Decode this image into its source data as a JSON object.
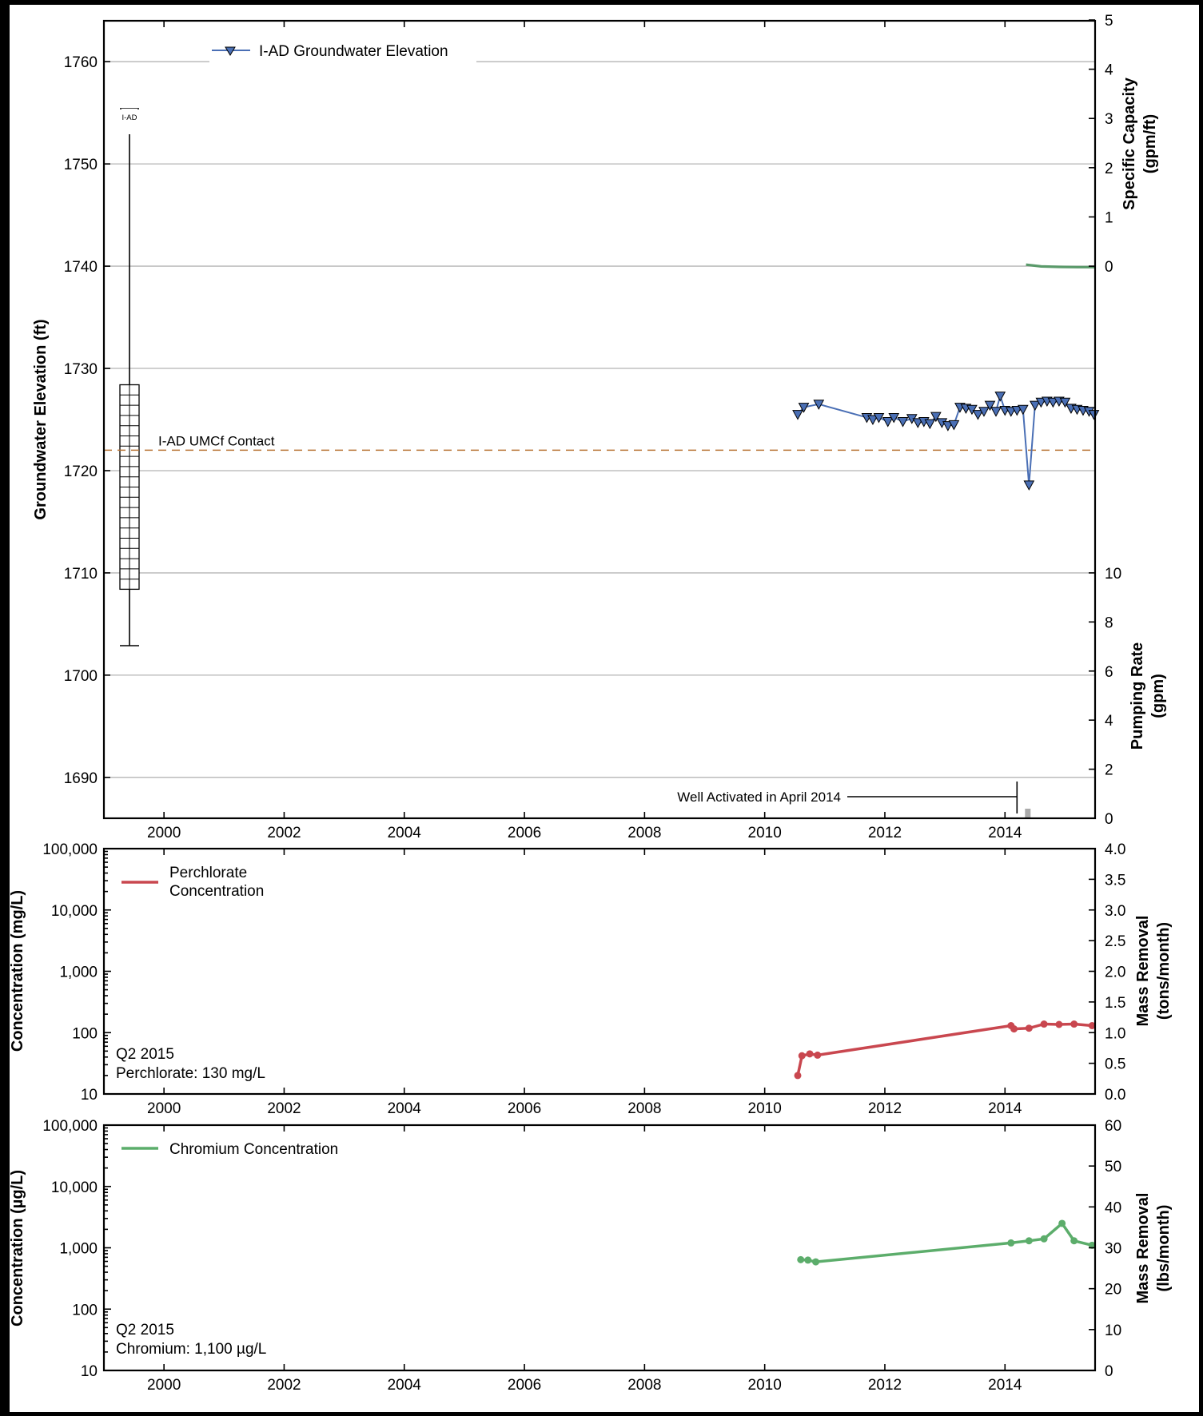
{
  "chart_data": [
    {
      "type": "line",
      "id": "groundwater",
      "ylabel": "Groundwater Elevation (ft)",
      "y2label_top": [
        "Specific Capacity",
        "(gpm/ft)"
      ],
      "y2label_bottom": [
        "Pumping Rate",
        "(gpm)"
      ],
      "xlim": [
        1999.0,
        2015.5
      ],
      "ylim": [
        1686,
        1764
      ],
      "yticks": [
        "1690",
        "1700",
        "1710",
        "1720",
        "1730",
        "1740",
        "1750",
        "1760"
      ],
      "xticks": [
        "2000",
        "2002",
        "2004",
        "2006",
        "2008",
        "2010",
        "2012",
        "2014"
      ],
      "y2_top_ticks": [
        "0",
        "1",
        "2",
        "3",
        "4",
        "5"
      ],
      "y2_bottom_ticks": [
        "0",
        "2",
        "4",
        "6",
        "8",
        "10"
      ],
      "grid": true,
      "legend": {
        "label": "I-AD Groundwater Elevation",
        "position": "top-left"
      },
      "well": {
        "label": "I-AD",
        "top": 1755.4,
        "bottom": 1703.0,
        "screen_top": 1728.4,
        "screen_bottom": 1708.4
      },
      "contact": {
        "label": "I-AD UMCf Contact",
        "value": 1722
      },
      "activation": {
        "label": "Well Activated in April 2014",
        "x": 2014.2
      },
      "series": [
        {
          "name": "I-AD Groundwater Elevation",
          "color": "#4a6fb5",
          "marker": "triangle-down",
          "x": [
            2010.55,
            2010.65,
            2010.9,
            2011.7,
            2011.8,
            2011.9,
            2012.05,
            2012.15,
            2012.3,
            2012.45,
            2012.55,
            2012.65,
            2012.75,
            2012.85,
            2012.95,
            2013.05,
            2013.15,
            2013.25,
            2013.35,
            2013.45,
            2013.55,
            2013.65,
            2013.75,
            2013.85,
            2013.92,
            2014.0,
            2014.1,
            2014.2,
            2014.3,
            2014.4,
            2014.5,
            2014.6,
            2014.7,
            2014.8,
            2014.9,
            2015.0,
            2015.1,
            2015.2,
            2015.3,
            2015.4,
            2015.48
          ],
          "y": [
            1725.5,
            1726.2,
            1726.5,
            1725.2,
            1725.0,
            1725.2,
            1724.8,
            1725.2,
            1724.8,
            1725.1,
            1724.7,
            1724.8,
            1724.6,
            1725.3,
            1724.7,
            1724.4,
            1724.5,
            1726.2,
            1726.1,
            1726.0,
            1725.5,
            1725.8,
            1726.4,
            1725.8,
            1727.3,
            1725.9,
            1725.8,
            1725.9,
            1726.0,
            1718.6,
            1726.4,
            1726.7,
            1726.8,
            1726.7,
            1726.8,
            1726.7,
            1726.1,
            1726.0,
            1725.9,
            1725.8,
            1725.5
          ]
        },
        {
          "name": "Specific Capacity",
          "color": "#5a9a6a",
          "x": [
            2014.35,
            2014.6,
            2014.9,
            2015.2,
            2015.5
          ],
          "y": [
            0.03,
            -0.005,
            -0.015,
            -0.02,
            -0.02
          ]
        }
      ]
    },
    {
      "type": "line",
      "id": "perchlorate",
      "ylabel": "Concentration (mg/L)",
      "y2label": [
        "Mass Removal",
        "(tons/month)"
      ],
      "xlim": [
        1999.0,
        2015.5
      ],
      "ylog": true,
      "ylim": [
        10,
        100000
      ],
      "yticks": [
        "10",
        "100",
        "1,000",
        "10,000",
        "100,000"
      ],
      "y2ticks": [
        "0.0",
        "0.5",
        "1.0",
        "1.5",
        "2.0",
        "2.5",
        "3.0",
        "3.5",
        "4.0"
      ],
      "xticks": [
        "2000",
        "2002",
        "2004",
        "2006",
        "2008",
        "2010",
        "2012",
        "2014"
      ],
      "legend": {
        "label": [
          "Perchlorate",
          "Concentration"
        ],
        "position": "top-left"
      },
      "annotation": [
        "Q2 2015",
        "Perchlorate: 130 mg/L"
      ],
      "series": [
        {
          "name": "Perchlorate Concentration",
          "color": "#c9474f",
          "x": [
            2010.55,
            2010.62,
            2010.75,
            2010.88,
            2014.1,
            2014.15,
            2014.4,
            2014.65,
            2014.9,
            2015.15,
            2015.45
          ],
          "y": [
            20,
            42,
            45,
            43,
            130,
            115,
            118,
            138,
            136,
            138,
            130
          ]
        }
      ]
    },
    {
      "type": "line",
      "id": "chromium",
      "ylabel": "Concentration (µg/L)",
      "y2label": [
        "Mass Removal",
        "(lbs/month)"
      ],
      "xlim": [
        1999.0,
        2015.5
      ],
      "ylog": true,
      "ylim": [
        10,
        100000
      ],
      "yticks": [
        "10",
        "100",
        "1,000",
        "10,000",
        "100,000"
      ],
      "y2ticks": [
        "0",
        "10",
        "20",
        "30",
        "40",
        "50",
        "60"
      ],
      "xticks": [
        "2000",
        "2002",
        "2004",
        "2006",
        "2008",
        "2010",
        "2012",
        "2014"
      ],
      "legend": {
        "label": "Chromium Concentration",
        "position": "top-left"
      },
      "annotation": [
        "Q2 2015",
        "Chromium: 1,100 µg/L"
      ],
      "series": [
        {
          "name": "Chromium Concentration",
          "color": "#5cad6b",
          "x": [
            2010.6,
            2010.72,
            2010.85,
            2014.1,
            2014.4,
            2014.65,
            2014.95,
            2015.15,
            2015.45
          ],
          "y": [
            640,
            630,
            590,
            1200,
            1300,
            1400,
            2500,
            1300,
            1100
          ]
        }
      ]
    }
  ]
}
